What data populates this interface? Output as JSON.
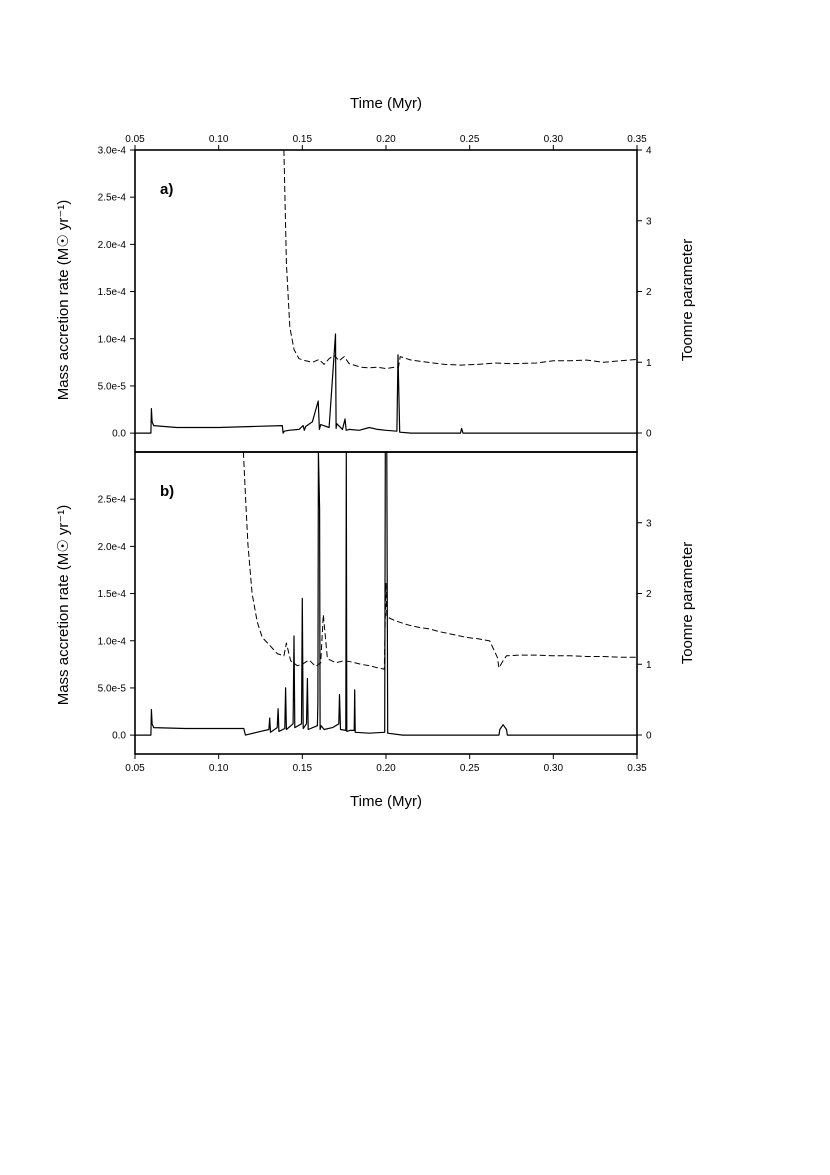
{
  "chart_data": [
    {
      "type": "line",
      "panel_label": "a)",
      "x_top_label": "Time (Myr)",
      "x_ticks": [
        "0.05",
        "0.10",
        "0.15",
        "0.20",
        "0.25",
        "0.30",
        "0.35"
      ],
      "xlim": [
        0.05,
        0.35
      ],
      "y_left_label": "Mass accretion rate (M☉ yr⁻¹)",
      "y_left_ticks": [
        "0.0",
        "5.0e-5",
        "1.0e-4",
        "1.5e-4",
        "2.0e-4",
        "2.5e-4",
        "3.0e-4"
      ],
      "ylim_left": [
        -2e-05,
        0.0003
      ],
      "y_right_label": "Toomre parameter",
      "y_right_ticks": [
        "0",
        "1",
        "2",
        "3",
        "4"
      ],
      "ylim_right": [
        0,
        4
      ],
      "series": [
        {
          "axis": "left",
          "style": "solid",
          "x": [
            0.05,
            0.0595,
            0.0598,
            0.0602,
            0.0612,
            0.075,
            0.1,
            0.12,
            0.138,
            0.1385,
            0.1392,
            0.142,
            0.148,
            0.1505,
            0.1512,
            0.152,
            0.156,
            0.1595,
            0.1602,
            0.161,
            0.166,
            0.1698,
            0.1702,
            0.1706,
            0.174,
            0.1755,
            0.1762,
            0.178,
            0.184,
            0.19,
            0.195,
            0.2,
            0.2065,
            0.2072,
            0.2082,
            0.215,
            0.23,
            0.2445,
            0.2452,
            0.246,
            0.26,
            0.3,
            0.35
          ],
          "y": [
            0.0,
            0.0,
            2.6e-05,
            1.2e-05,
            8e-06,
            6e-06,
            6e-06,
            7e-06,
            8e-06,
            0.0,
            2e-06,
            3e-06,
            4e-06,
            8e-06,
            3e-06,
            7e-06,
            1.2e-05,
            3.4e-05,
            4e-06,
            9e-06,
            6e-06,
            0.000105,
            5e-06,
            1e-05,
            4e-06,
            1.5e-05,
            3e-06,
            4e-06,
            3e-06,
            6e-06,
            4e-06,
            3e-06,
            2e-06,
            8.3e-05,
            1e-06,
            0.0,
            0.0,
            0.0,
            5e-06,
            0.0,
            0.0,
            0.0,
            0.0
          ]
        },
        {
          "axis": "right",
          "style": "dashed",
          "x": [
            0.139,
            0.1405,
            0.1425,
            0.145,
            0.148,
            0.152,
            0.156,
            0.16,
            0.163,
            0.166,
            0.169,
            0.172,
            0.175,
            0.178,
            0.181,
            0.185,
            0.19,
            0.195,
            0.2,
            0.205,
            0.2075,
            0.2085,
            0.215,
            0.225,
            0.235,
            0.245,
            0.255,
            0.265,
            0.275,
            0.29,
            0.3,
            0.31,
            0.32,
            0.33,
            0.34,
            0.35
          ],
          "y": [
            4.0,
            2.4,
            1.5,
            1.18,
            1.05,
            1.02,
            1.0,
            1.04,
            0.97,
            1.05,
            1.1,
            1.02,
            1.08,
            0.98,
            0.96,
            0.93,
            0.92,
            0.93,
            0.91,
            0.93,
            0.93,
            1.08,
            1.03,
            1.0,
            0.97,
            0.96,
            0.97,
            0.99,
            0.98,
            0.99,
            1.02,
            1.02,
            1.03,
            1.0,
            1.02,
            1.04
          ]
        }
      ]
    },
    {
      "type": "line",
      "panel_label": "b)",
      "x_bottom_label": "Time (Myr)",
      "x_ticks": [
        "0.05",
        "0.10",
        "0.15",
        "0.20",
        "0.25",
        "0.30",
        "0.35"
      ],
      "xlim": [
        0.05,
        0.35
      ],
      "y_left_label": "Mass accretion rate (M☉ yr⁻¹)",
      "y_left_ticks": [
        "0.0",
        "5.0e-5",
        "1.0e-4",
        "1.5e-4",
        "2.0e-4",
        "2.5e-4"
      ],
      "ylim_left": [
        -2e-05,
        0.0003
      ],
      "y_right_label": "Toomre parameter",
      "y_right_ticks": [
        "0",
        "1",
        "2",
        "3"
      ],
      "ylim_right": [
        0,
        4
      ],
      "series": [
        {
          "axis": "left",
          "style": "solid",
          "x": [
            0.05,
            0.0595,
            0.0598,
            0.0602,
            0.0612,
            0.08,
            0.1,
            0.115,
            0.116,
            0.125,
            0.13,
            0.1305,
            0.131,
            0.135,
            0.1355,
            0.136,
            0.1395,
            0.14,
            0.1405,
            0.1445,
            0.145,
            0.1455,
            0.1495,
            0.15,
            0.1505,
            0.1525,
            0.153,
            0.1535,
            0.159,
            0.1593,
            0.1596,
            0.1603,
            0.1606,
            0.1612,
            0.163,
            0.168,
            0.1718,
            0.1722,
            0.1728,
            0.176,
            0.1763,
            0.1766,
            0.1785,
            0.181,
            0.1813,
            0.1816,
            0.19,
            0.1992,
            0.1996,
            0.2005,
            0.201,
            0.21,
            0.24,
            0.2675,
            0.268,
            0.27,
            0.272,
            0.2725,
            0.29,
            0.35
          ],
          "y": [
            0.0,
            0.0,
            2.7e-05,
            1.2e-05,
            8e-06,
            7e-06,
            7e-06,
            7e-06,
            0.0,
            4e-06,
            6e-06,
            1.8e-05,
            3e-06,
            8e-06,
            2.8e-05,
            4e-06,
            7e-06,
            5e-05,
            6e-06,
            1.2e-05,
            0.000105,
            8e-06,
            1.2e-05,
            0.000145,
            7e-06,
            1.2e-05,
            6e-05,
            6e-06,
            1e-05,
            3.5e-05,
            0.00034,
            0.00024,
            6e-06,
            1e-05,
            6e-06,
            8e-06,
            1.2e-05,
            4.3e-05,
            6e-06,
            5e-06,
            0.00034,
            4e-06,
            5e-06,
            5e-06,
            4.8e-05,
            3e-06,
            2e-06,
            3e-06,
            0.00034,
            0.00034,
            2e-06,
            0.0,
            0.0,
            0.0,
            6e-06,
            1.1e-05,
            6e-06,
            0.0,
            0.0,
            0.0
          ]
        },
        {
          "axis": "right",
          "style": "dashed",
          "x": [
            0.1148,
            0.116,
            0.1175,
            0.12,
            0.123,
            0.126,
            0.13,
            0.135,
            0.139,
            0.1405,
            0.143,
            0.147,
            0.15,
            0.154,
            0.158,
            0.161,
            0.1625,
            0.165,
            0.17,
            0.175,
            0.18,
            0.185,
            0.19,
            0.195,
            0.199,
            0.2,
            0.2005,
            0.205,
            0.21,
            0.214,
            0.22,
            0.226,
            0.232,
            0.24,
            0.248,
            0.255,
            0.262,
            0.2665,
            0.2675,
            0.27,
            0.272,
            0.28,
            0.29,
            0.3,
            0.31,
            0.32,
            0.33,
            0.34,
            0.35
          ],
          "y": [
            4.0,
            3.4,
            2.7,
            2.0,
            1.6,
            1.38,
            1.28,
            1.15,
            1.12,
            1.3,
            1.05,
            0.98,
            1.0,
            1.06,
            0.97,
            1.02,
            1.7,
            1.08,
            1.02,
            1.05,
            1.03,
            1.0,
            0.98,
            0.95,
            0.93,
            2.15,
            1.67,
            1.62,
            1.58,
            1.55,
            1.52,
            1.5,
            1.46,
            1.42,
            1.38,
            1.36,
            1.33,
            1.1,
            0.95,
            1.05,
            1.12,
            1.13,
            1.13,
            1.12,
            1.12,
            1.11,
            1.11,
            1.1,
            1.1
          ]
        }
      ]
    }
  ]
}
